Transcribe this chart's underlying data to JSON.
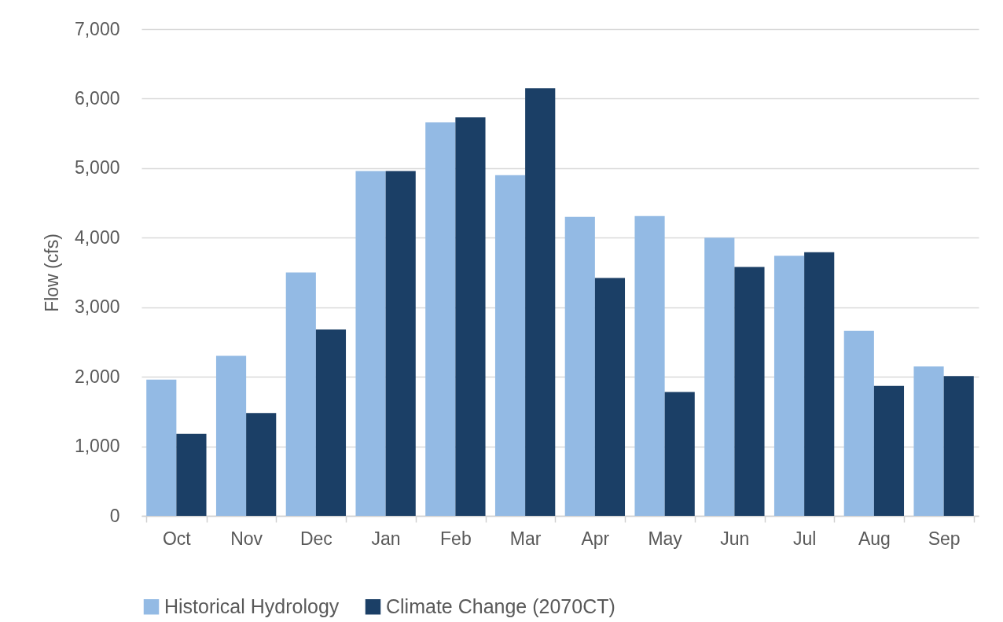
{
  "chart_data": {
    "type": "bar",
    "ylabel": "Flow (cfs)",
    "categories": [
      "Oct",
      "Nov",
      "Dec",
      "Jan",
      "Feb",
      "Mar",
      "Apr",
      "May",
      "Jun",
      "Jul",
      "Aug",
      "Sep"
    ],
    "series": [
      {
        "name": "Historical Hydrology",
        "color": "#93bae4",
        "values": [
          1960,
          2300,
          3500,
          4960,
          5660,
          4900,
          4300,
          4310,
          4000,
          3740,
          2660,
          2150
        ]
      },
      {
        "name": "Climate Change (2070CT)",
        "color": "#1b3f66",
        "values": [
          1180,
          1480,
          2680,
          4960,
          5730,
          6150,
          3420,
          1780,
          3580,
          3790,
          1870,
          2010
        ]
      }
    ],
    "ylim": [
      0,
      7000
    ],
    "yticks": [
      {
        "value": 0,
        "label": "0"
      },
      {
        "value": 1000,
        "label": "1,000"
      },
      {
        "value": 2000,
        "label": "2,000"
      },
      {
        "value": 3000,
        "label": "3,000"
      },
      {
        "value": 4000,
        "label": "4,000"
      },
      {
        "value": 5000,
        "label": "5,000"
      },
      {
        "value": 6000,
        "label": "6,000"
      },
      {
        "value": 7000,
        "label": "7,000"
      }
    ],
    "grid": "y",
    "legend": "bottom"
  }
}
